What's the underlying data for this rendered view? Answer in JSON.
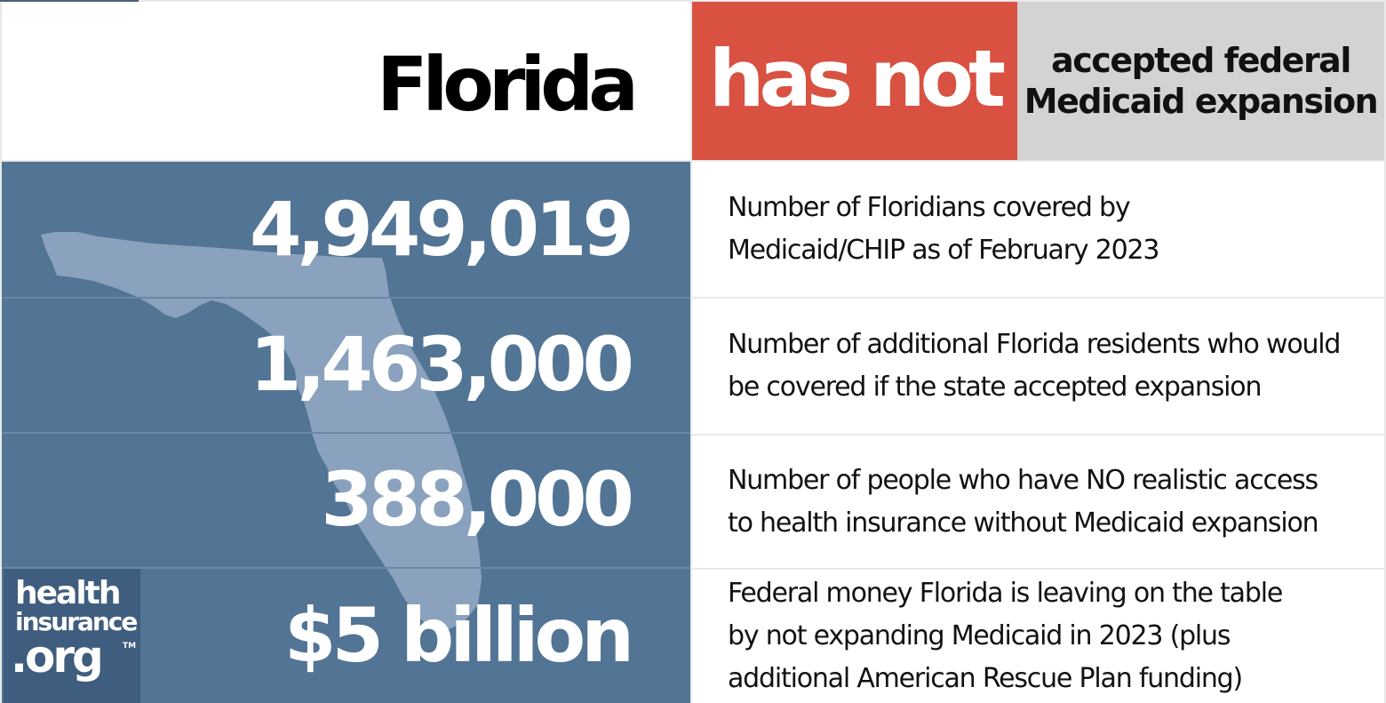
{
  "header": {
    "state": "Florida",
    "status": "has not",
    "status_description_line1": "accepted federal",
    "status_description_line2": "Medicaid expansion"
  },
  "colors": {
    "status_red": "#d85141",
    "panel_blue": "#527495",
    "map_fill": "#8aa2bd",
    "status_desc_gray": "#d3d3d3"
  },
  "stats": [
    {
      "value": "4,949,019",
      "description": "Number of Floridians covered by\nMedicaid/CHIP as of February 2023"
    },
    {
      "value": "1,463,000",
      "description": "Number of additional Florida residents who would\nbe covered if the state accepted expansion"
    },
    {
      "value": "388,000",
      "description": "Number of people who have NO realistic access\nto health insurance without Medicaid expansion"
    },
    {
      "value": "$5 billion",
      "description": "Federal money Florida is leaving on the table\nby not expanding Medicaid in 2023 (plus\nadditional American Rescue Plan funding)"
    }
  ],
  "logo": {
    "line1": "health",
    "line2": "insurance",
    "line3": ".org",
    "trademark": "TM"
  },
  "icons": {
    "state_map": "florida-map-silhouette"
  }
}
